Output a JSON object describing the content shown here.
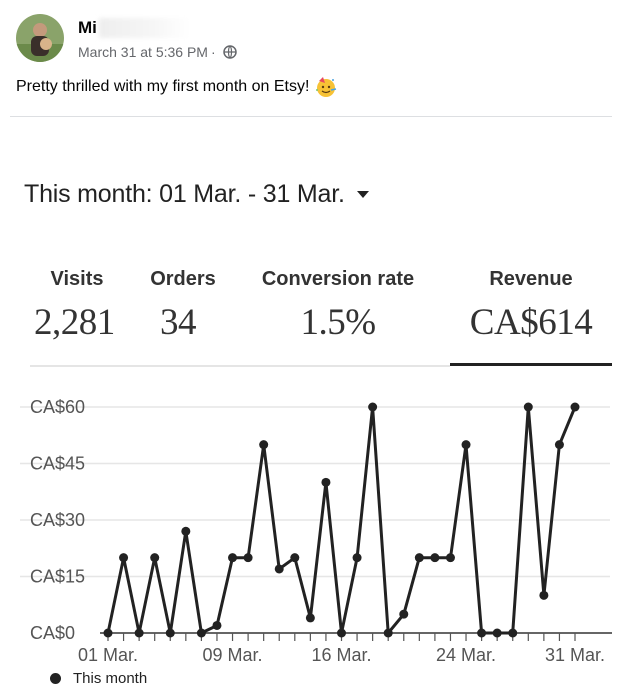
{
  "post": {
    "author_visible": "Mi",
    "timestamp": "March 31 at 5:36 PM",
    "separator": "·",
    "privacy_icon": "globe-icon",
    "text": "Pretty thrilled with my first month on Etsy!",
    "emoji_icon": "partying-face-emoji-icon"
  },
  "stats": {
    "period_label": "This month: 01 Mar. - 31 Mar.",
    "visits_label": "Visits",
    "visits_value": "2,281",
    "orders_label": "Orders",
    "orders_value": "34",
    "conversion_label": "Conversion rate",
    "conversion_value": "1.5%",
    "revenue_label": "Revenue",
    "revenue_value": "CA$614",
    "selected": "Revenue"
  },
  "chart_data": {
    "type": "line",
    "series": [
      {
        "name": "This month",
        "x": [
          "01 Mar.",
          "02 Mar.",
          "03 Mar.",
          "04 Mar.",
          "05 Mar.",
          "06 Mar.",
          "07 Mar.",
          "08 Mar.",
          "09 Mar.",
          "10 Mar.",
          "11 Mar.",
          "12 Mar.",
          "13 Mar.",
          "14 Mar.",
          "15 Mar.",
          "16 Mar.",
          "17 Mar.",
          "18 Mar.",
          "19 Mar.",
          "20 Mar.",
          "21 Mar.",
          "22 Mar.",
          "23 Mar.",
          "24 Mar.",
          "25 Mar.",
          "26 Mar.",
          "27 Mar.",
          "28 Mar.",
          "29 Mar.",
          "30 Mar.",
          "31 Mar."
        ],
        "values": [
          0,
          20,
          0,
          20,
          0,
          27,
          0,
          2,
          20,
          20,
          50,
          17,
          20,
          4,
          40,
          0,
          20,
          60,
          0,
          5,
          20,
          20,
          20,
          50,
          0,
          0,
          0,
          60,
          10,
          50,
          60
        ]
      }
    ],
    "y_tick_labels": [
      "CA$0",
      "CA$15",
      "CA$30",
      "CA$45",
      "CA$60"
    ],
    "y_ticks": [
      0,
      15,
      30,
      45,
      60
    ],
    "ylim": [
      0,
      60
    ],
    "x_tick_labels": [
      "01 Mar.",
      "09 Mar.",
      "16 Mar.",
      "24 Mar.",
      "31 Mar."
    ],
    "x_tick_days": [
      1,
      9,
      16,
      24,
      31
    ],
    "legend": "This month",
    "line_color": "#222222",
    "grid": "horizontal"
  }
}
